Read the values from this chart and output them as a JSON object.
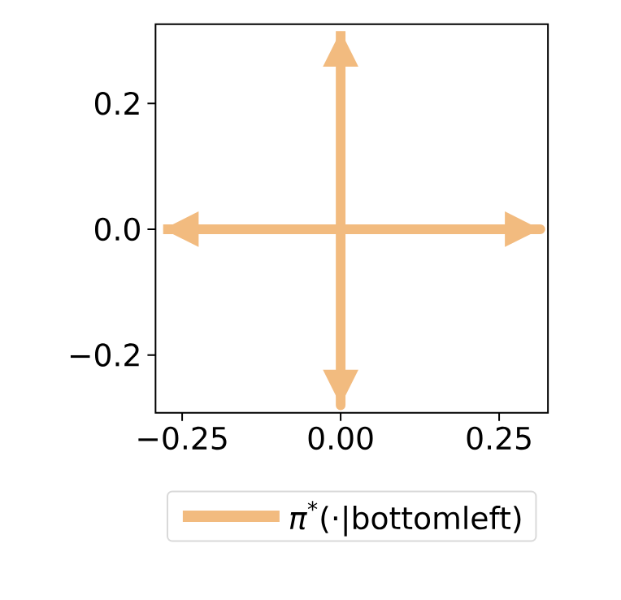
{
  "chart_data": {
    "type": "line",
    "x": [
      -0.28,
      0,
      0.315,
      0,
      0,
      0,
      0
    ],
    "series": [
      {
        "name": "*π*$^{*}$(·|bottomleft)",
        "color": "#f2bb7f",
        "values": [
          0,
          0,
          0,
          0,
          -0.28,
          0,
          0.315
        ]
      }
    ],
    "xlim": [
      -0.292,
      0.327
    ],
    "ylim": [
      -0.292,
      0.326
    ],
    "xticks": [
      {
        "value": -0.25,
        "label": "−0.25"
      },
      {
        "value": 0,
        "label": "0.00"
      },
      0.25
    ],
    "yticks": [
      {
        "value": -0.2,
        "label": "−0.2"
      },
      {
        "value": 0,
        "label": "0.0"
      },
      0.2
    ],
    "grid": false,
    "legend": "bottom",
    "marker": "none",
    "line_style": "solid"
  }
}
